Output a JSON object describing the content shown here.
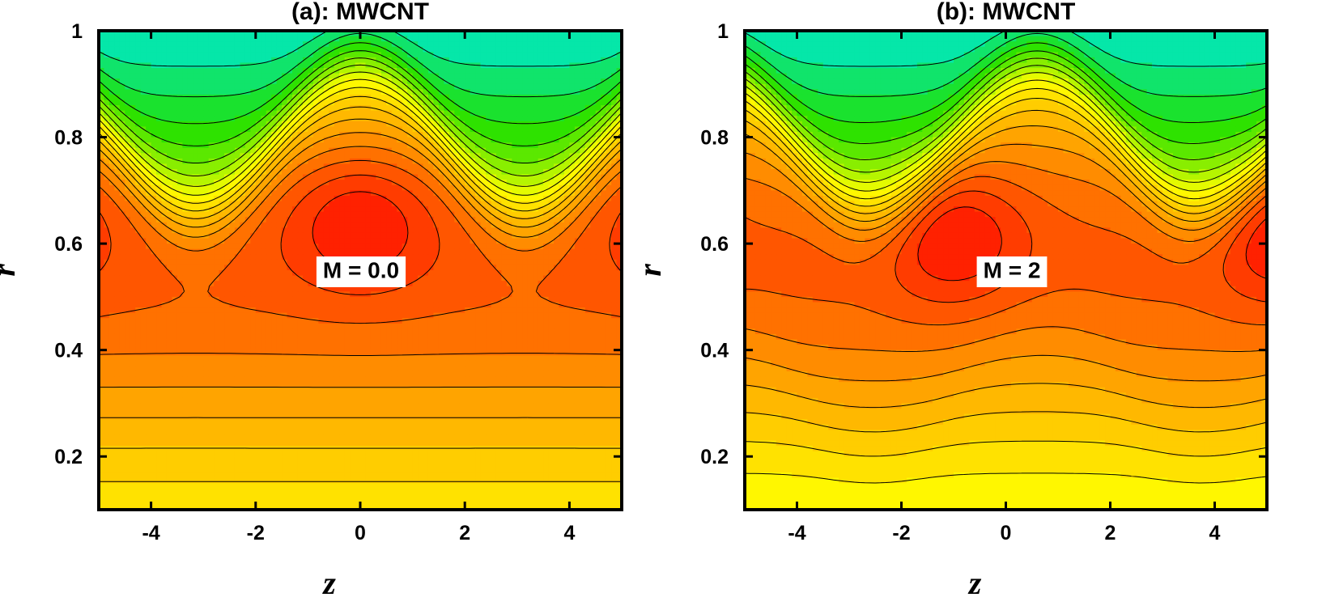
{
  "chart_data": [
    {
      "type": "contour",
      "title": "(a): MWCNT",
      "xlabel": "z",
      "ylabel": "r",
      "xlim": [
        -5,
        5
      ],
      "ylim": [
        0.1,
        1
      ],
      "xticks": [
        -4,
        -2,
        0,
        2,
        4
      ],
      "yticks": [
        0.2,
        0.4,
        0.6,
        0.8,
        1
      ],
      "annotation": "M = 0.0",
      "M": 0.0,
      "wave_center_z": 0.0,
      "peak": {
        "z": 0.0,
        "r": 0.65
      },
      "levels": 18
    },
    {
      "type": "contour",
      "title": "(b): MWCNT",
      "xlabel": "z",
      "ylabel": "r",
      "xlim": [
        -5,
        5
      ],
      "ylim": [
        0.1,
        1
      ],
      "xticks": [
        -4,
        -2,
        0,
        2,
        4
      ],
      "yticks": [
        0.2,
        0.4,
        0.6,
        0.8,
        1
      ],
      "annotation": "M = 2",
      "M": 2,
      "wave_center_z": 0.6,
      "peak": {
        "z": -1.0,
        "r": 0.62
      },
      "levels": 18
    }
  ],
  "colors": {
    "low": "#00e8c8",
    "green": "#22e000",
    "yellow": "#ffff00",
    "orange": "#ff9a00",
    "high": "#ff1400",
    "contour_line": "#000000"
  }
}
